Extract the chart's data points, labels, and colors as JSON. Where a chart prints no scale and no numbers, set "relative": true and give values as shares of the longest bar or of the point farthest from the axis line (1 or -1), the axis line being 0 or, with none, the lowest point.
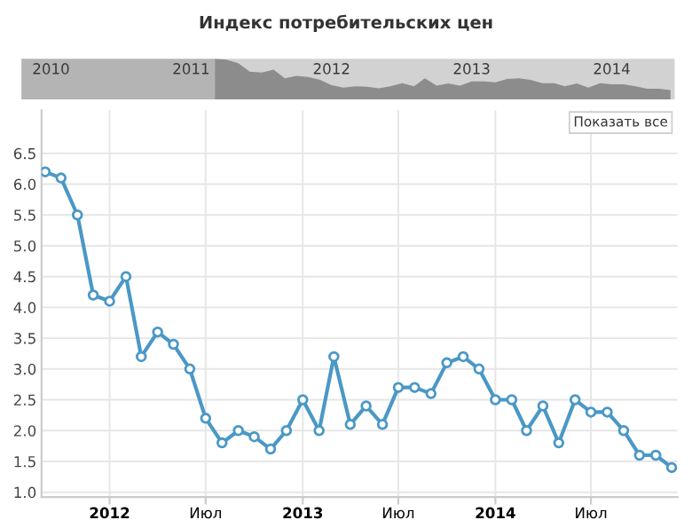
{
  "chart_data": [
    {
      "type": "area",
      "relative": true,
      "title": "Индекс потребительских цен",
      "x": [
        "2011-09",
        "2011-10",
        "2011-11",
        "2011-12",
        "2012-01",
        "2012-02",
        "2012-03",
        "2012-04",
        "2012-05",
        "2012-06",
        "2012-07",
        "2012-08",
        "2012-09",
        "2012-10",
        "2012-11",
        "2012-12",
        "2013-01",
        "2013-02",
        "2013-03",
        "2013-04",
        "2013-05",
        "2013-06",
        "2013-07",
        "2013-08",
        "2013-09",
        "2013-10",
        "2013-11",
        "2013-12",
        "2014-01",
        "2014-02",
        "2014-03",
        "2014-04",
        "2014-05",
        "2014-06",
        "2014-07",
        "2014-08",
        "2014-09",
        "2014-10",
        "2014-11",
        "2014-12"
      ],
      "series": [
        {
          "color": "#8c8c8c",
          "values": [
            1.0,
            0.98,
            0.89,
            0.68,
            0.66,
            0.73,
            0.52,
            0.58,
            0.55,
            0.48,
            0.35,
            0.29,
            0.32,
            0.31,
            0.27,
            0.32,
            0.4,
            0.32,
            0.52,
            0.34,
            0.39,
            0.34,
            0.44,
            0.44,
            0.42,
            0.5,
            0.52,
            0.48,
            0.4,
            0.4,
            0.32,
            0.39,
            0.29,
            0.4,
            0.37,
            0.37,
            0.32,
            0.26,
            0.26,
            0.23
          ]
        }
      ],
      "xlim": [
        "2010-04-15",
        "2014-12-12"
      ],
      "xticks": [
        {
          "value": "2010-07-01",
          "label": "2010"
        },
        {
          "value": "2011-07-01",
          "label": "2011"
        },
        {
          "value": "2012-07-01",
          "label": "2012"
        },
        {
          "value": "2013-07-01",
          "label": "2013"
        },
        {
          "value": "2014-07-01",
          "label": "2014"
        }
      ],
      "bands": [
        {
          "axis": "x",
          "from": "2010-04-15",
          "to": "2011-09-01",
          "color": "#b4b4b4"
        }
      ],
      "tick_labels": "x",
      "grid": false,
      "legend": false
    },
    {
      "type": "line",
      "x": [
        "2011-09",
        "2011-10",
        "2011-11",
        "2011-12",
        "2012-01",
        "2012-02",
        "2012-03",
        "2012-04",
        "2012-05",
        "2012-06",
        "2012-07",
        "2012-08",
        "2012-09",
        "2012-10",
        "2012-11",
        "2012-12",
        "2013-01",
        "2013-02",
        "2013-03",
        "2013-04",
        "2013-05",
        "2013-06",
        "2013-07",
        "2013-08",
        "2013-09",
        "2013-10",
        "2013-11",
        "2013-12",
        "2014-01",
        "2014-02",
        "2014-03",
        "2014-04",
        "2014-05",
        "2014-06",
        "2014-07",
        "2014-08",
        "2014-09",
        "2014-10",
        "2014-11",
        "2014-12"
      ],
      "series": [
        {
          "color": "#4a98c6",
          "values": [
            6.2,
            6.1,
            5.5,
            4.2,
            4.1,
            4.5,
            3.2,
            3.6,
            3.4,
            3.0,
            2.2,
            1.8,
            2.0,
            1.9,
            1.7,
            2.0,
            2.5,
            2.0,
            3.2,
            2.1,
            2.4,
            2.1,
            2.7,
            2.7,
            2.6,
            3.1,
            3.2,
            3.0,
            2.5,
            2.5,
            2.0,
            2.4,
            1.8,
            2.5,
            2.3,
            2.3,
            2.0,
            1.6,
            1.6,
            1.4
          ]
        }
      ],
      "xlim": [
        "2011-08-25",
        "2014-12-12"
      ],
      "xticks": [
        {
          "value": "2012-01-01",
          "label": "2012"
        },
        {
          "value": "2012-07-01",
          "label": "Июл"
        },
        {
          "value": "2013-01-01",
          "label": "2013"
        },
        {
          "value": "2013-07-01",
          "label": "Июл"
        },
        {
          "value": "2014-01-01",
          "label": "2014"
        },
        {
          "value": "2014-07-01",
          "label": "Июл"
        }
      ],
      "ylim": [
        0.92,
        7.2
      ],
      "yticks": [
        {
          "value": 1.0,
          "label": "1.0"
        },
        {
          "value": 1.5,
          "label": "1.5"
        },
        {
          "value": 2.0,
          "label": "2.0"
        },
        {
          "value": 2.5,
          "label": "2.5"
        },
        {
          "value": 3.0,
          "label": "3.0"
        },
        {
          "value": 3.5,
          "label": "3.5"
        },
        {
          "value": 4.0,
          "label": "4.0"
        },
        {
          "value": 4.5,
          "label": "4.5"
        },
        {
          "value": 5.0,
          "label": "5.0"
        },
        {
          "value": 5.5,
          "label": "5.5"
        },
        {
          "value": 6.0,
          "label": "6.0"
        },
        {
          "value": 6.5,
          "label": "6.5"
        }
      ],
      "marker": "circle",
      "line_style": "solid",
      "grid": true,
      "legend": false,
      "annotations": [
        "Показать все"
      ]
    }
  ]
}
